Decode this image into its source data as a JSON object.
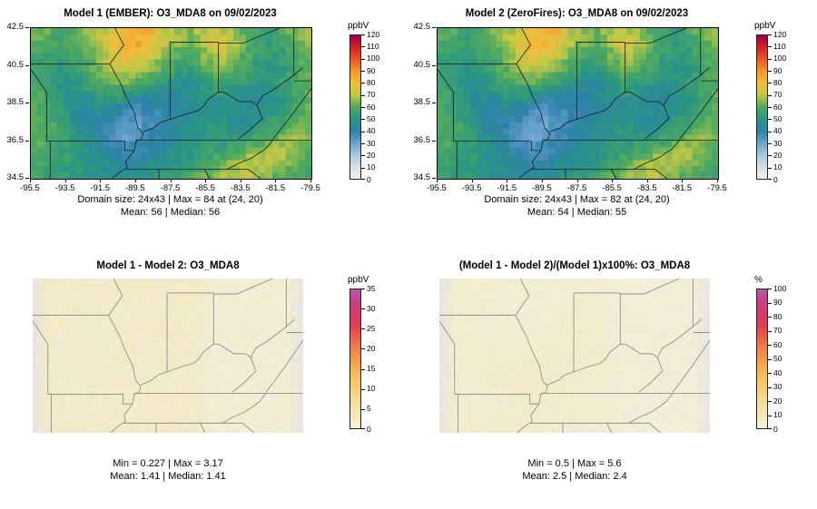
{
  "figure": {
    "background": "#ffffff"
  },
  "panels": [
    {
      "title": "Model 1 (EMBER): O3_MDA8 on 09/02/2023",
      "colorbar_label": "ppbV",
      "caption1": "Domain size: 24x43 | Max = 84 at (24, 20)",
      "caption2": "Mean: 56 |  Median: 56"
    },
    {
      "title": "Model 2 (ZeroFires): O3_MDA8 on 09/02/2023",
      "colorbar_label": "ppbV",
      "caption1": "Domain size: 24x43 | Max = 82 at (24, 20)",
      "caption2": "Mean: 54 |  Median: 55"
    },
    {
      "title": "Model 1 - Model 2: O3_MDA8",
      "colorbar_label": "ppbV",
      "caption1": "Min = 0.227 | Max = 3.17",
      "caption2": "Mean: 1.41 |  Median: 1.41"
    },
    {
      "title": "(Model 1 - Model 2)/(Model 1)x100%: O3_MDA8",
      "colorbar_label": "%",
      "caption1": "Min = 0.5 | Max = 5.6",
      "caption2": "Mean: 2.5 |  Median: 2.4"
    }
  ],
  "chart_data": [
    {
      "type": "heatmap",
      "title": "Model 1 (EMBER): O3_MDA8 on 09/02/2023",
      "units": "ppbV",
      "x_ticks": [
        -95.5,
        -93.5,
        -91.5,
        -89.5,
        -87.5,
        -85.5,
        -83.5,
        -81.5,
        -79.5
      ],
      "y_ticks": [
        42.5,
        40.5,
        38.5,
        36.5,
        34.5
      ],
      "domain": {
        "ny": 24,
        "nx": 43,
        "lon_range": [
          -95.5,
          -79.5
        ],
        "lat_range": [
          34.5,
          42.5
        ]
      },
      "stats": {
        "max": 84,
        "max_at": [
          24,
          20
        ],
        "mean": 56,
        "median": 56
      },
      "colorbar": {
        "min": 0,
        "max": 120,
        "ticks": [
          0,
          10,
          20,
          30,
          40,
          50,
          60,
          70,
          80,
          90,
          100,
          110,
          120
        ],
        "stops": [
          [
            0,
            "#f2f2ef"
          ],
          [
            0.083,
            "#d7dee6"
          ],
          [
            0.167,
            "#a9c6de"
          ],
          [
            0.25,
            "#6aa3cf"
          ],
          [
            0.333,
            "#2d82aa"
          ],
          [
            0.417,
            "#2a9682"
          ],
          [
            0.5,
            "#50aa5f"
          ],
          [
            0.583,
            "#bec846"
          ],
          [
            0.667,
            "#f0be3c"
          ],
          [
            0.75,
            "#f5962d"
          ],
          [
            0.833,
            "#eb5a28"
          ],
          [
            0.917,
            "#d72323"
          ],
          [
            1,
            "#a00046"
          ]
        ]
      },
      "grid_note": "12x22 coarse approximation (north to south) of the 24x43 ppbV field",
      "grid": [
        [
          63,
          61,
          59,
          61,
          65,
          69,
          73,
          78,
          82,
          86,
          70,
          66,
          64,
          70,
          72,
          68,
          62,
          57,
          54,
          60,
          64,
          66
        ],
        [
          60,
          58,
          56,
          58,
          62,
          70,
          77,
          83,
          84,
          76,
          70,
          66,
          62,
          68,
          74,
          70,
          64,
          58,
          53,
          56,
          60,
          64
        ],
        [
          58,
          55,
          54,
          56,
          60,
          66,
          74,
          80,
          78,
          72,
          66,
          60,
          58,
          64,
          70,
          66,
          60,
          55,
          52,
          54,
          58,
          62
        ],
        [
          56,
          52,
          50,
          54,
          58,
          62,
          68,
          72,
          70,
          64,
          58,
          54,
          52,
          58,
          62,
          60,
          56,
          52,
          50,
          52,
          56,
          60
        ],
        [
          58,
          54,
          48,
          50,
          54,
          58,
          60,
          62,
          58,
          54,
          50,
          48,
          46,
          52,
          56,
          54,
          52,
          48,
          50,
          54,
          58,
          62
        ],
        [
          60,
          56,
          50,
          46,
          48,
          52,
          54,
          50,
          46,
          44,
          42,
          44,
          46,
          48,
          50,
          48,
          46,
          44,
          48,
          52,
          56,
          60
        ],
        [
          62,
          58,
          52,
          46,
          44,
          46,
          44,
          40,
          36,
          38,
          40,
          42,
          44,
          46,
          48,
          46,
          44,
          46,
          50,
          54,
          58,
          62
        ],
        [
          64,
          60,
          54,
          48,
          44,
          42,
          38,
          34,
          32,
          36,
          40,
          44,
          46,
          48,
          50,
          48,
          46,
          48,
          52,
          56,
          60,
          64
        ],
        [
          62,
          60,
          56,
          50,
          46,
          42,
          36,
          32,
          34,
          38,
          42,
          46,
          48,
          50,
          52,
          50,
          52,
          56,
          60,
          64,
          66,
          64
        ],
        [
          60,
          58,
          56,
          52,
          48,
          44,
          40,
          36,
          38,
          42,
          46,
          48,
          50,
          52,
          54,
          56,
          58,
          62,
          66,
          70,
          68,
          62
        ],
        [
          58,
          56,
          54,
          52,
          50,
          46,
          44,
          42,
          44,
          46,
          48,
          50,
          52,
          56,
          60,
          64,
          68,
          72,
          70,
          66,
          62,
          58
        ],
        [
          56,
          54,
          52,
          50,
          48,
          46,
          44,
          46,
          48,
          50,
          52,
          54,
          58,
          62,
          66,
          70,
          72,
          68,
          64,
          60,
          58,
          56
        ]
      ]
    },
    {
      "type": "heatmap",
      "title": "Model 2 (ZeroFires): O3_MDA8 on 09/02/2023",
      "units": "ppbV",
      "x_ticks": [
        -95.5,
        -93.5,
        -91.5,
        -89.5,
        -87.5,
        -85.5,
        -83.5,
        -81.5,
        -79.5
      ],
      "y_ticks": [
        42.5,
        40.5,
        38.5,
        36.5,
        34.5
      ],
      "domain": {
        "ny": 24,
        "nx": 43,
        "lon_range": [
          -95.5,
          -79.5
        ],
        "lat_range": [
          34.5,
          42.5
        ]
      },
      "stats": {
        "max": 82,
        "max_at": [
          24,
          20
        ],
        "mean": 54,
        "median": 55
      },
      "colorbar": {
        "min": 0,
        "max": 120,
        "ticks": [
          0,
          10,
          20,
          30,
          40,
          50,
          60,
          70,
          80,
          90,
          100,
          110,
          120
        ],
        "stops": [
          [
            0,
            "#f2f2ef"
          ],
          [
            0.083,
            "#d7dee6"
          ],
          [
            0.167,
            "#a9c6de"
          ],
          [
            0.25,
            "#6aa3cf"
          ],
          [
            0.333,
            "#2d82aa"
          ],
          [
            0.417,
            "#2a9682"
          ],
          [
            0.5,
            "#50aa5f"
          ],
          [
            0.583,
            "#bec846"
          ],
          [
            0.667,
            "#f0be3c"
          ],
          [
            0.75,
            "#f5962d"
          ],
          [
            0.833,
            "#eb5a28"
          ],
          [
            0.917,
            "#d72323"
          ],
          [
            1,
            "#a00046"
          ]
        ]
      },
      "grid_note": "12x22 coarse approximation (north to south) of the 24x43 ppbV field",
      "grid": [
        [
          61,
          59,
          57,
          59,
          63,
          67,
          71,
          76,
          80,
          84,
          68,
          64,
          62,
          68,
          71,
          67,
          61,
          56,
          53,
          59,
          63,
          65
        ],
        [
          58,
          56,
          54,
          56,
          60,
          68,
          75,
          81,
          82,
          74,
          68,
          64,
          60,
          66,
          73,
          69,
          63,
          57,
          52,
          55,
          59,
          63
        ],
        [
          56,
          53,
          52,
          54,
          58,
          64,
          72,
          78,
          76,
          70,
          64,
          58,
          56,
          62,
          69,
          65,
          59,
          54,
          51,
          53,
          57,
          61
        ],
        [
          54,
          50,
          48,
          52,
          56,
          60,
          66,
          70,
          68,
          62,
          56,
          52,
          50,
          56,
          61,
          59,
          55,
          51,
          49,
          51,
          55,
          59
        ],
        [
          56,
          52,
          46,
          48,
          52,
          56,
          58,
          60,
          56,
          52,
          48,
          46,
          44,
          50,
          55,
          53,
          51,
          47,
          49,
          53,
          57,
          61
        ],
        [
          58,
          54,
          48,
          44,
          46,
          50,
          52,
          48,
          44,
          42,
          40,
          42,
          44,
          46,
          49,
          47,
          45,
          43,
          47,
          51,
          55,
          59
        ],
        [
          60,
          56,
          50,
          44,
          42,
          44,
          42,
          38,
          34,
          36,
          38,
          40,
          42,
          44,
          47,
          45,
          43,
          45,
          49,
          53,
          57,
          61
        ],
        [
          62,
          58,
          52,
          46,
          42,
          40,
          36,
          32,
          30,
          34,
          38,
          42,
          44,
          46,
          49,
          47,
          45,
          47,
          51,
          55,
          59,
          63
        ],
        [
          60,
          58,
          54,
          48,
          44,
          40,
          34,
          30,
          32,
          36,
          40,
          44,
          46,
          48,
          51,
          49,
          51,
          55,
          59,
          63,
          65,
          63
        ],
        [
          58,
          56,
          54,
          50,
          46,
          42,
          38,
          34,
          36,
          40,
          44,
          46,
          48,
          50,
          53,
          55,
          57,
          61,
          65,
          69,
          67,
          61
        ],
        [
          56,
          54,
          52,
          50,
          48,
          44,
          42,
          40,
          42,
          44,
          46,
          48,
          50,
          54,
          59,
          63,
          67,
          71,
          69,
          65,
          61,
          57
        ],
        [
          54,
          52,
          50,
          48,
          46,
          44,
          42,
          44,
          46,
          48,
          50,
          52,
          56,
          60,
          65,
          69,
          71,
          67,
          63,
          59,
          57,
          55
        ]
      ]
    },
    {
      "type": "heatmap",
      "title": "Model 1 - Model 2: O3_MDA8",
      "units": "ppbV",
      "derived": "model1_minus_model2",
      "domain": {
        "ny": 24,
        "nx": 43,
        "lon_range": [
          -95.5,
          -79.5
        ],
        "lat_range": [
          34.5,
          42.5
        ]
      },
      "stats": {
        "min": 0.227,
        "max": 3.17,
        "mean": 1.41,
        "median": 1.41
      },
      "colorbar": {
        "min": 0,
        "max": 35,
        "ticks": [
          0,
          5,
          10,
          15,
          20,
          25,
          30,
          35
        ],
        "stops": [
          [
            0,
            "#f4f0dc"
          ],
          [
            0.2,
            "#f4df8e"
          ],
          [
            0.4,
            "#f7b956"
          ],
          [
            0.6,
            "#ee7846"
          ],
          [
            0.75,
            "#e13c50"
          ],
          [
            0.9,
            "#cd3c82"
          ],
          [
            1,
            "#b65ba6"
          ]
        ]
      }
    },
    {
      "type": "heatmap",
      "title": "(Model 1 - Model 2)/(Model 1)x100%: O3_MDA8",
      "units": "%",
      "derived": "model1_minus_model2_over_model1_x100",
      "domain": {
        "ny": 24,
        "nx": 43,
        "lon_range": [
          -95.5,
          -79.5
        ],
        "lat_range": [
          34.5,
          42.5
        ]
      },
      "stats": {
        "min": 0.5,
        "max": 5.6,
        "mean": 2.5,
        "median": 2.4
      },
      "colorbar": {
        "min": 0,
        "max": 100,
        "ticks": [
          0,
          10,
          20,
          30,
          40,
          50,
          60,
          70,
          80,
          90,
          100
        ],
        "stops": [
          [
            0,
            "#f4f0dc"
          ],
          [
            0.2,
            "#f4df8e"
          ],
          [
            0.4,
            "#f7b956"
          ],
          [
            0.6,
            "#ee7846"
          ],
          [
            0.75,
            "#e13c50"
          ],
          [
            0.9,
            "#cd3c82"
          ],
          [
            1,
            "#b65ba6"
          ]
        ]
      }
    }
  ]
}
